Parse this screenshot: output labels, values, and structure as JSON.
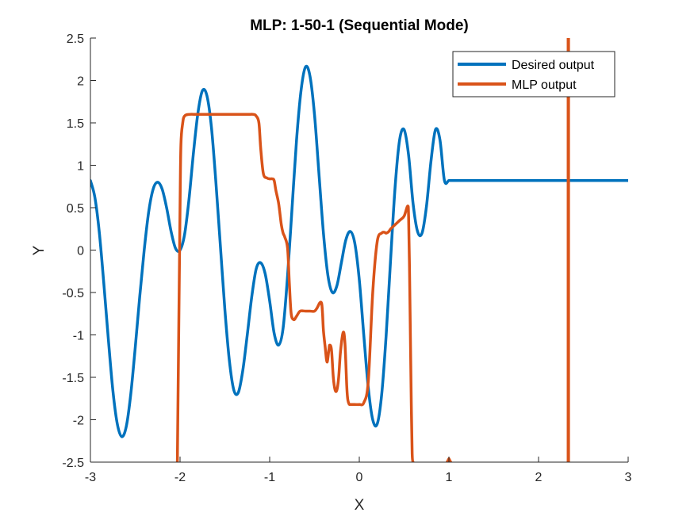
{
  "chart_data": {
    "type": "line",
    "title": "MLP: 1-50-1 (Sequential Mode)",
    "xlabel": "X",
    "ylabel": "Y",
    "xlim": [
      -3,
      3
    ],
    "ylim": [
      -2.5,
      2.5
    ],
    "xticks": [
      -3,
      -2,
      -1,
      0,
      1,
      2,
      3
    ],
    "yticks": [
      -2.5,
      -2,
      -1.5,
      -1,
      -0.5,
      0,
      0.5,
      1,
      1.5,
      2,
      2.5
    ],
    "xtick_labels": [
      "-3",
      "-2",
      "-1",
      "0",
      "1",
      "2",
      "3"
    ],
    "ytick_labels": [
      "-2.5",
      "-2",
      "-1.5",
      "-1",
      "-0.5",
      "0",
      "0.5",
      "1",
      "1.5",
      "2",
      "2.5"
    ],
    "grid": false,
    "legend_position": "top-right",
    "series": [
      {
        "name": "Desired output",
        "color": "#0072BD",
        "x": [
          -3.0,
          -2.95,
          -2.9,
          -2.85,
          -2.8,
          -2.75,
          -2.7,
          -2.65,
          -2.6,
          -2.55,
          -2.5,
          -2.45,
          -2.4,
          -2.35,
          -2.3,
          -2.25,
          -2.2,
          -2.15,
          -2.1,
          -2.05,
          -2.0,
          -1.95,
          -1.9,
          -1.85,
          -1.8,
          -1.75,
          -1.7,
          -1.65,
          -1.6,
          -1.55,
          -1.5,
          -1.45,
          -1.4,
          -1.35,
          -1.3,
          -1.25,
          -1.2,
          -1.15,
          -1.1,
          -1.05,
          -1.0,
          -0.95,
          -0.9,
          -0.85,
          -0.8,
          -0.75,
          -0.7,
          -0.65,
          -0.6,
          -0.55,
          -0.5,
          -0.45,
          -0.4,
          -0.35,
          -0.3,
          -0.25,
          -0.2,
          -0.15,
          -0.1,
          -0.05,
          0.0,
          0.05,
          0.1,
          0.15,
          0.2,
          0.25,
          0.3,
          0.35,
          0.4,
          0.45,
          0.5,
          0.55,
          0.6,
          0.65,
          0.7,
          0.75,
          0.8,
          0.85,
          0.9,
          0.95,
          1.0,
          1.05,
          1.1,
          1.15,
          1.2,
          1.25,
          1.3,
          1.35,
          1.4,
          1.45,
          1.5,
          1.55,
          1.6,
          1.65,
          1.7,
          1.75,
          1.8,
          1.85,
          1.9,
          1.95,
          2.0,
          2.05,
          2.1,
          2.15,
          2.2,
          2.25,
          2.3,
          2.35,
          2.4,
          2.45,
          2.5,
          2.55,
          2.6,
          2.65,
          2.7,
          2.75,
          2.8,
          2.85,
          2.9,
          2.95,
          3.0
        ],
        "y": [
          0.82,
          0.62,
          0.2,
          -0.4,
          -1.05,
          -1.65,
          -2.05,
          -2.2,
          -2.08,
          -1.7,
          -1.15,
          -0.55,
          0.0,
          0.45,
          0.72,
          0.8,
          0.72,
          0.5,
          0.22,
          0.02,
          0.0,
          0.18,
          0.6,
          1.15,
          1.62,
          1.88,
          1.82,
          1.45,
          0.8,
          0.05,
          -0.7,
          -1.3,
          -1.65,
          -1.68,
          -1.42,
          -1.0,
          -0.55,
          -0.22,
          -0.15,
          -0.28,
          -0.6,
          -0.98,
          -1.12,
          -0.92,
          -0.3,
          0.5,
          1.3,
          1.88,
          2.16,
          2.05,
          1.6,
          0.9,
          0.2,
          -0.3,
          -0.5,
          -0.42,
          -0.15,
          0.12,
          0.22,
          0.08,
          -0.35,
          -1.0,
          -1.62,
          -2.0,
          -2.05,
          -1.7,
          -1.0,
          -0.1,
          0.75,
          1.3,
          1.42,
          1.12,
          0.55,
          0.22,
          0.2,
          0.52,
          1.05,
          1.42,
          1.3,
          0.82,
          0.82,
          0.82,
          0.82,
          0.82,
          0.82,
          0.82,
          0.82,
          0.82,
          0.82,
          0.82,
          0.82,
          0.82,
          0.82,
          0.82,
          0.82,
          0.82,
          0.82,
          0.82,
          0.82,
          0.82,
          0.82,
          0.82,
          0.82,
          0.82,
          0.82,
          0.82,
          0.82,
          0.82,
          0.82,
          0.82,
          0.82,
          0.82,
          0.82,
          0.82,
          0.82,
          0.82,
          0.82,
          0.82,
          0.82,
          0.82,
          0.82
        ]
      },
      {
        "name": "MLP output",
        "color": "#D95319",
        "x": [
          -2.03,
          -2.0,
          -1.99,
          -1.97,
          -1.95,
          -1.9,
          -1.8,
          -1.6,
          -1.4,
          -1.25,
          -1.18,
          -1.15,
          -1.12,
          -1.1,
          -1.07,
          -1.03,
          -1.0,
          -0.97,
          -0.95,
          -0.93,
          -0.9,
          -0.87,
          -0.85,
          -0.83,
          -0.8,
          -0.78,
          -0.76,
          -0.73,
          -0.7,
          -0.66,
          -0.6,
          -0.55,
          -0.5,
          -0.47,
          -0.44,
          -0.42,
          -0.41,
          -0.4,
          -0.38,
          -0.36,
          -0.34,
          -0.33,
          -0.31,
          -0.29,
          -0.27,
          -0.25,
          -0.23,
          -0.21,
          -0.18,
          -0.16,
          -0.14,
          -0.13,
          -0.12,
          -0.11,
          -0.1,
          -0.08,
          -0.05,
          0.0,
          0.05,
          0.1,
          0.15,
          0.2,
          0.25,
          0.28,
          0.3,
          0.33,
          0.35,
          0.4,
          0.45,
          0.5,
          0.54,
          0.55,
          0.56,
          0.57,
          0.58,
          0.59,
          0.6
        ],
        "y": [
          -2.5,
          0.5,
          1.25,
          1.5,
          1.58,
          1.6,
          1.6,
          1.6,
          1.6,
          1.6,
          1.6,
          1.58,
          1.5,
          1.2,
          0.9,
          0.85,
          0.84,
          0.84,
          0.82,
          0.7,
          0.55,
          0.3,
          0.2,
          0.15,
          0.02,
          -0.4,
          -0.75,
          -0.82,
          -0.78,
          -0.72,
          -0.72,
          -0.72,
          -0.72,
          -0.68,
          -0.62,
          -0.63,
          -0.75,
          -0.95,
          -1.15,
          -1.32,
          -1.18,
          -1.12,
          -1.18,
          -1.5,
          -1.65,
          -1.65,
          -1.5,
          -1.2,
          -0.97,
          -1.1,
          -1.6,
          -1.75,
          -1.8,
          -1.82,
          -1.82,
          -1.82,
          -1.82,
          -1.82,
          -1.8,
          -1.55,
          -0.5,
          0.1,
          0.2,
          0.21,
          0.2,
          0.22,
          0.25,
          0.3,
          0.35,
          0.4,
          0.52,
          0.4,
          -0.2,
          -1.0,
          -1.8,
          -2.4,
          -2.5
        ]
      },
      {
        "name": "",
        "color": "#D95319",
        "x": [
          0.98,
          1.0,
          1.02
        ],
        "y": [
          -2.5,
          -2.46,
          -2.5
        ]
      },
      {
        "name": "",
        "color": "#D95319",
        "x": [
          2.33,
          2.33,
          2.335,
          2.335
        ],
        "y": [
          -2.5,
          2.5,
          2.5,
          -2.5
        ]
      }
    ]
  }
}
